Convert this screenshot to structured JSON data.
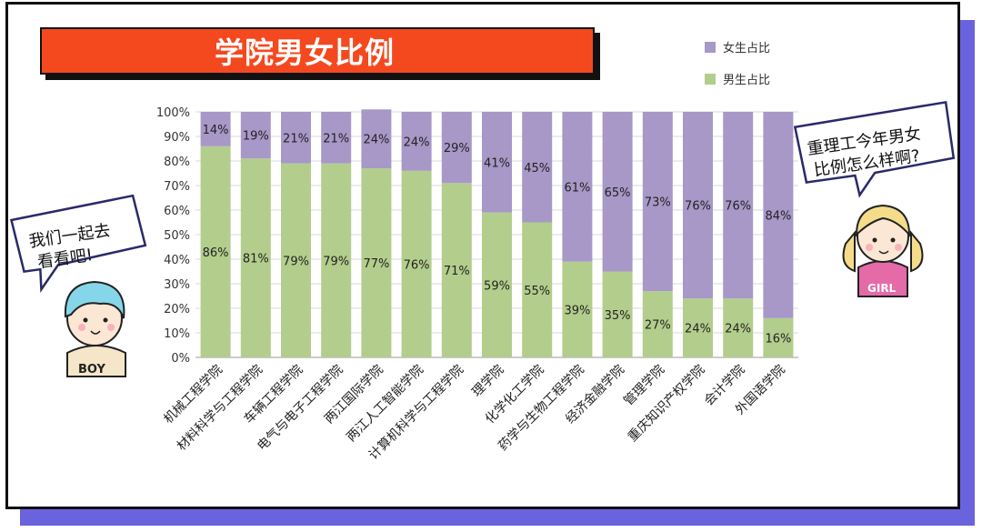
{
  "title": "学院男女比例",
  "chart_data": {
    "type": "bar",
    "stacked": true,
    "categories": [
      "机械工程学院",
      "材料科学与工程学院",
      "车辆工程学院",
      "电气与电子工程学院",
      "两江国际学院",
      "两江人工智能学院",
      "计算机科学与工程学院",
      "理学院",
      "化学化工学院",
      "药学与生物工程学院",
      "经济金融学院",
      "管理学院",
      "重庆知识产权学院",
      "会计学院",
      "外国语学院"
    ],
    "series": [
      {
        "name": "男生占比",
        "color": "#b3cd8c",
        "values": [
          86,
          81,
          79,
          79,
          77,
          76,
          71,
          59,
          55,
          39,
          35,
          27,
          24,
          24,
          16
        ]
      },
      {
        "name": "女生占比",
        "color": "#a798c8",
        "values": [
          14,
          19,
          21,
          21,
          24,
          24,
          29,
          41,
          45,
          61,
          65,
          73,
          76,
          76,
          84
        ]
      }
    ],
    "value_suffix": "%",
    "ylim": [
      0,
      100
    ],
    "yticks": [
      "0%",
      "10%",
      "20%",
      "30%",
      "40%",
      "50%",
      "60%",
      "70%",
      "80%",
      "90%",
      "100%"
    ],
    "legend": [
      "女生占比",
      "男生占比"
    ],
    "legend_position": "top-right"
  },
  "bubble_left": {
    "line1": "我们一起去",
    "line2": "看看吧!"
  },
  "bubble_right": {
    "line1": "重理工今年男女",
    "line2": "比例怎么样啊?"
  },
  "boy_label": "BOY",
  "girl_label": "GIRL"
}
